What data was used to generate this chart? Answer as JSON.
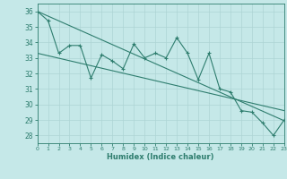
{
  "title": "",
  "xlabel": "Humidex (Indice chaleur)",
  "xlim": [
    0,
    23
  ],
  "ylim": [
    27.5,
    36.5
  ],
  "xticks": [
    0,
    1,
    2,
    3,
    4,
    5,
    6,
    7,
    8,
    9,
    10,
    11,
    12,
    13,
    14,
    15,
    16,
    17,
    18,
    19,
    20,
    21,
    22,
    23
  ],
  "yticks": [
    28,
    29,
    30,
    31,
    32,
    33,
    34,
    35,
    36
  ],
  "bg_color": "#c5e8e8",
  "grid_color": "#aed4d4",
  "line_color": "#2e7d6e",
  "line1_x": [
    0,
    1,
    2,
    3,
    4,
    5,
    6,
    7,
    8,
    9,
    10,
    11,
    12,
    13,
    14,
    15,
    16,
    17,
    18,
    19,
    20,
    21,
    22,
    23
  ],
  "line1_y": [
    36.0,
    35.4,
    33.3,
    33.8,
    33.8,
    31.7,
    33.2,
    32.8,
    32.3,
    33.9,
    33.0,
    33.3,
    33.0,
    34.3,
    33.3,
    31.6,
    33.3,
    31.0,
    30.8,
    29.6,
    29.5,
    28.8,
    28.0,
    29.0
  ],
  "line2_x": [
    0,
    23
  ],
  "line2_y": [
    36.0,
    28.95
  ],
  "line3_x": [
    0,
    23
  ],
  "line3_y": [
    33.3,
    29.6
  ]
}
